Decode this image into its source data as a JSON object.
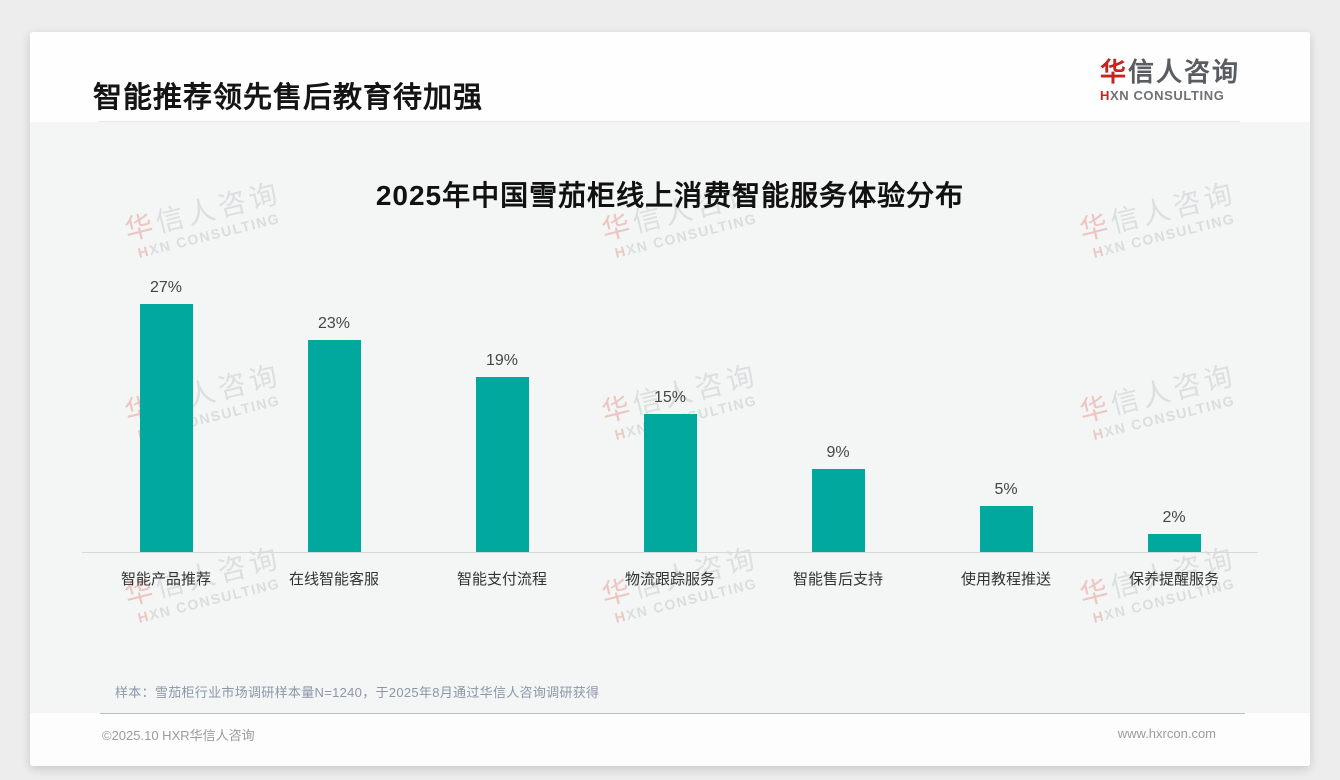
{
  "header": {
    "title": "智能推荐领先售后教育待加强"
  },
  "logo": {
    "cn_accent": "华",
    "cn_rest": "信人咨询",
    "en_accent": "H",
    "en_rest": "XN CONSULTING"
  },
  "watermark": {
    "cn_accent": "华",
    "cn_rest": "信人咨询",
    "en_accent": "H",
    "en_rest": "XN CONSULTING"
  },
  "chart_data": {
    "type": "bar",
    "title": "2025年中国雪茄柜线上消费智能服务体验分布",
    "categories": [
      "智能产品推荐",
      "在线智能客服",
      "智能支付流程",
      "物流跟踪服务",
      "智能售后支持",
      "使用教程推送",
      "保养提醒服务"
    ],
    "values": [
      27,
      23,
      19,
      15,
      9,
      5,
      2
    ],
    "value_labels": [
      "27%",
      "23%",
      "19%",
      "15%",
      "9%",
      "5%",
      "2%"
    ],
    "xlabel": "",
    "ylabel": "",
    "ylim": [
      0,
      30
    ],
    "grid": false,
    "legend": false,
    "bar_color": "#00a89d"
  },
  "note": {
    "text": "样本：雪茄柜行业市场调研样本量N=1240，于2025年8月通过华信人咨询调研获得"
  },
  "footer": {
    "copyright": "©2025.10 HXR华信人咨询",
    "website": "www.hxrcon.com"
  },
  "colors": {
    "accent_red": "#c5241f",
    "bar_teal": "#00a89d",
    "body_gray": "#f4f5f5",
    "note_blue_gray": "#8b97a9"
  }
}
